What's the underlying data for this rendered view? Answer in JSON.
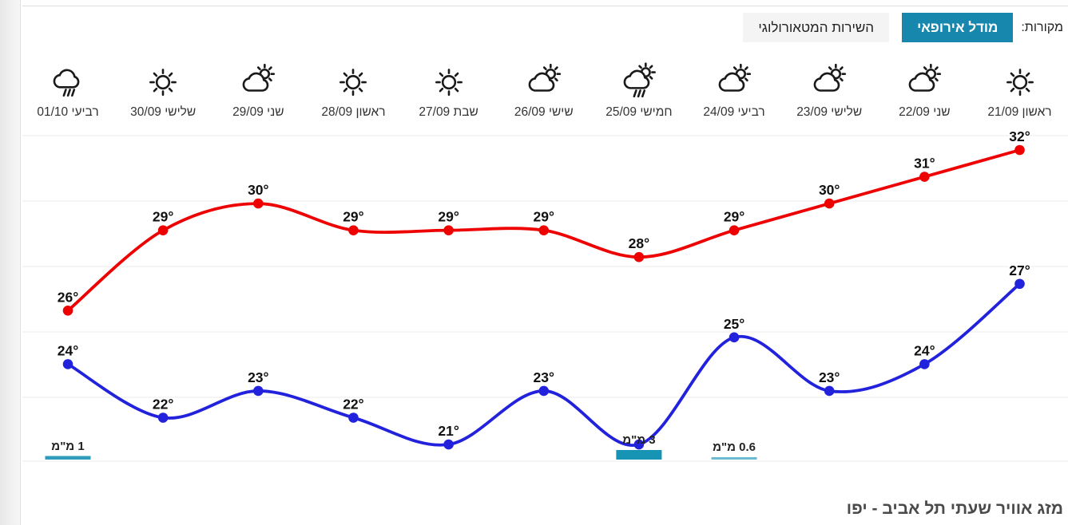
{
  "header": {
    "sources_label": "מקורות:",
    "tabs": [
      {
        "label": "מודל אירופאי",
        "active": true
      },
      {
        "label": "השירות המטאורולוגי",
        "active": false
      }
    ]
  },
  "bottom_title": "מזג אוויר שעתי תל אביב - יפו",
  "colors": {
    "active_tab": "#1787ad",
    "high_series": "#ee0000",
    "low_series": "#2222dd",
    "gridline": "#ebebeb"
  },
  "chart_data": {
    "type": "line",
    "direction": "rtl",
    "title": "",
    "ylim": [
      20,
      33
    ],
    "grid": "horizontal",
    "days": [
      {
        "name": "ראשון",
        "date": "21/09",
        "icon": "sunny"
      },
      {
        "name": "שני",
        "date": "22/09",
        "icon": "partly-cloudy"
      },
      {
        "name": "שלישי",
        "date": "23/09",
        "icon": "partly-cloudy"
      },
      {
        "name": "רביעי",
        "date": "24/09",
        "icon": "partly-cloudy"
      },
      {
        "name": "חמישי",
        "date": "25/09",
        "icon": "sun-shower"
      },
      {
        "name": "שישי",
        "date": "26/09",
        "icon": "partly-cloudy"
      },
      {
        "name": "שבת",
        "date": "27/09",
        "icon": "sunny"
      },
      {
        "name": "ראשון",
        "date": "28/09",
        "icon": "sunny"
      },
      {
        "name": "שני",
        "date": "29/09",
        "icon": "partly-cloudy"
      },
      {
        "name": "שלישי",
        "date": "30/09",
        "icon": "sunny"
      },
      {
        "name": "רביעי",
        "date": "01/10",
        "icon": "rain"
      }
    ],
    "series": [
      {
        "name": "high-temp",
        "color": "#ee0000",
        "values": [
          32,
          31,
          30,
          29,
          28,
          29,
          29,
          29,
          30,
          29,
          26
        ],
        "label_suffix": "°",
        "label_hidden_indexes": []
      },
      {
        "name": "low-temp",
        "color": "#2222dd",
        "values": [
          27,
          24,
          23,
          25,
          21,
          23,
          21,
          22,
          23,
          22,
          24
        ],
        "label_suffix": "°",
        "label_hidden_indexes": [
          4
        ]
      }
    ],
    "precipitation": [
      {
        "day_index": 3,
        "mm": 0.6,
        "label": "0.6 מ\"מ",
        "color": "#6cbad1"
      },
      {
        "day_index": 4,
        "mm": 3,
        "label": "3 מ\"מ",
        "color": "#1793b3"
      },
      {
        "day_index": 10,
        "mm": 1,
        "label": "1 מ\"מ",
        "color": "#2d9cbd"
      }
    ]
  }
}
